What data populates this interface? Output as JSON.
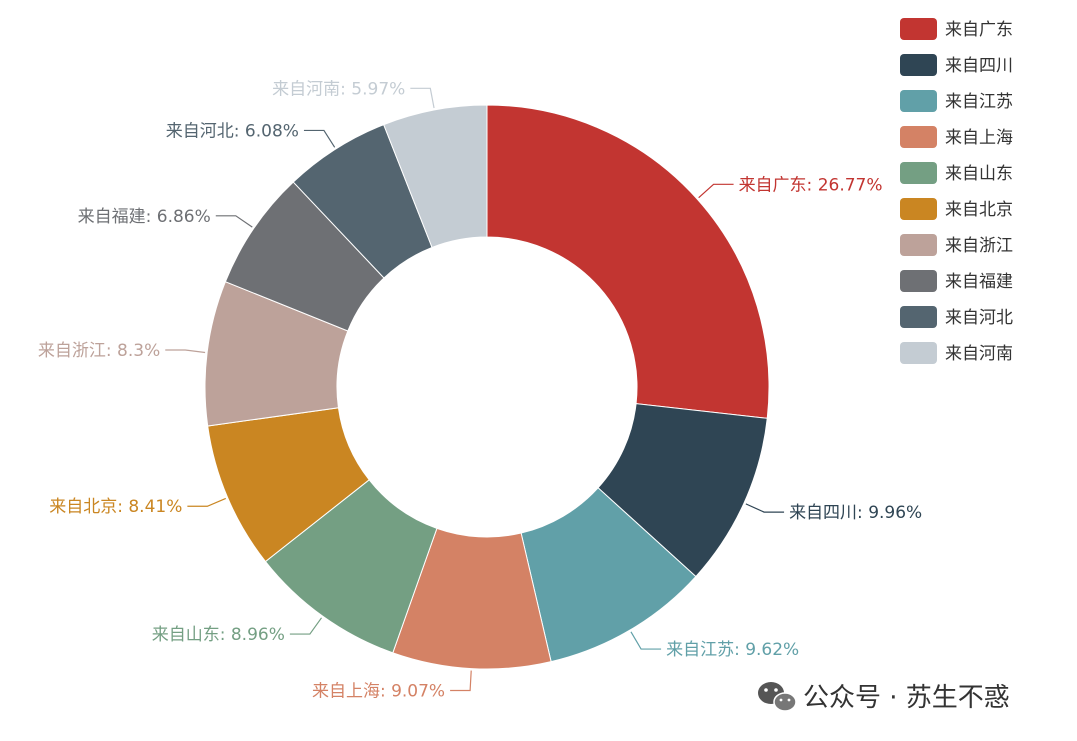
{
  "chart_data": {
    "type": "pie",
    "title": "",
    "legend_position": "top-right",
    "categories": [
      "来自广东",
      "来自四川",
      "来自江苏",
      "来自上海",
      "来自山东",
      "来自北京",
      "来自浙江",
      "来自福建",
      "来自河北",
      "来自河南"
    ],
    "values": [
      26.77,
      9.96,
      9.62,
      9.07,
      8.96,
      8.41,
      8.3,
      6.86,
      6.08,
      5.97
    ],
    "labels": [
      "来自广东: 26.77%",
      "来自四川: 9.96%",
      "来自江苏: 9.62%",
      "来自上海: 9.07%",
      "来自山东: 8.96%",
      "来自北京: 8.41%",
      "来自浙江: 8.3%",
      "来自福建: 6.86%",
      "来自河北: 6.08%",
      "来自河南: 5.97%"
    ],
    "colors": [
      "#c23531",
      "#2f4554",
      "#61a0a8",
      "#d48265",
      "#749f83",
      "#ca8622",
      "#bda29a",
      "#6e7074",
      "#546570",
      "#c4ccd3"
    ]
  },
  "watermark": {
    "text": "公众号 · 苏生不惑",
    "icon": "wechat-icon"
  }
}
